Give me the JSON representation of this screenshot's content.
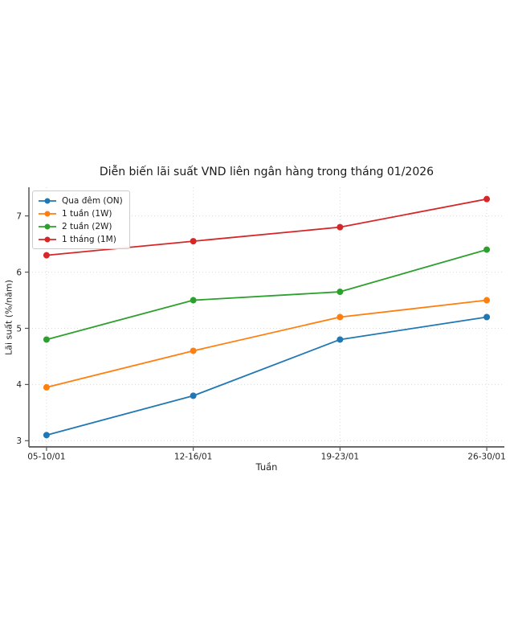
{
  "chart_data": {
    "type": "line",
    "title": "Diễn biến lãi suất VND liên ngân hàng trong tháng 01/2026",
    "xlabel": "Tuần",
    "ylabel": "Lãi suất (%/năm)",
    "categories": [
      "05-10/01",
      "12-16/01",
      "19-23/01",
      "26-30/01"
    ],
    "series": [
      {
        "name": "Qua đêm (ON)",
        "color": "#1f77b4",
        "values": [
          3.1,
          3.8,
          4.8,
          5.2
        ]
      },
      {
        "name": "1 tuần (1W)",
        "color": "#ff7f0e",
        "values": [
          3.95,
          4.6,
          5.2,
          5.5
        ]
      },
      {
        "name": "2 tuần (2W)",
        "color": "#2ca02c",
        "values": [
          4.8,
          5.5,
          5.65,
          6.4
        ]
      },
      {
        "name": "1 tháng (1M)",
        "color": "#d62728",
        "values": [
          6.3,
          6.55,
          6.8,
          7.3
        ]
      }
    ],
    "yticks": [
      3,
      4,
      5,
      6,
      7
    ],
    "ylim": [
      2.89,
      7.51
    ],
    "grid": true,
    "grid_color": "#d9d9d9",
    "spine_color": "#555555",
    "legend_position": "upper-left",
    "marker": "circle"
  }
}
